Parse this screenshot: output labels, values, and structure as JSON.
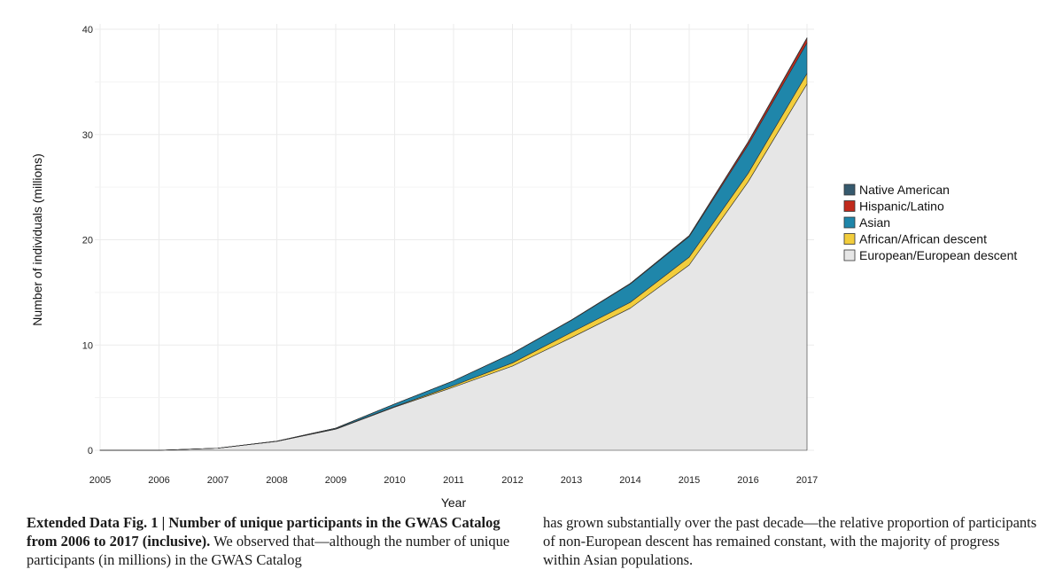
{
  "chart_data": {
    "type": "area",
    "stacked": true,
    "xlabel": "Year",
    "ylabel": "Number of individuals (millions)",
    "x": [
      2005,
      2006,
      2007,
      2008,
      2009,
      2010,
      2011,
      2012,
      2013,
      2014,
      2015,
      2016,
      2017
    ],
    "xticks": [
      "2005",
      "2006",
      "2007",
      "2008",
      "2009",
      "2010",
      "2011",
      "2012",
      "2013",
      "2014",
      "2015",
      "2016",
      "2017"
    ],
    "ylim": [
      0,
      40
    ],
    "yticks": [
      "0",
      "10",
      "20",
      "30",
      "40"
    ],
    "ytick_values": [
      0,
      10,
      20,
      30,
      40
    ],
    "grid": true,
    "legend_position": "right",
    "series": [
      {
        "name": "European/European descent",
        "color": "#e6e6e6",
        "values": [
          0,
          0,
          0.2,
          0.85,
          2.0,
          4.1,
          6.0,
          8.0,
          10.7,
          13.5,
          17.6,
          25.5,
          34.8
        ]
      },
      {
        "name": "African/African descent",
        "color": "#f2cd3c",
        "values": [
          0,
          0,
          0,
          0,
          0.03,
          0.05,
          0.15,
          0.3,
          0.5,
          0.55,
          0.75,
          0.8,
          1.0
        ]
      },
      {
        "name": "Asian",
        "color": "#1f86aa",
        "values": [
          0,
          0,
          0,
          0.02,
          0.07,
          0.25,
          0.45,
          0.9,
          1.15,
          1.75,
          1.95,
          2.7,
          2.9
        ]
      },
      {
        "name": "Hispanic/Latino",
        "color": "#c12a1c",
        "values": [
          0,
          0,
          0,
          0,
          0,
          0,
          0,
          0.02,
          0.03,
          0.05,
          0.08,
          0.25,
          0.45
        ]
      },
      {
        "name": "Native American",
        "color": "#365a6e",
        "values": [
          0,
          0,
          0,
          0,
          0,
          0,
          0,
          0,
          0,
          0,
          0.02,
          0.05,
          0.05
        ]
      }
    ],
    "legend": [
      "Native American",
      "Hispanic/Latino",
      "Asian",
      "African/African descent",
      "European/European descent"
    ]
  },
  "caption": {
    "label": "Extended Data Fig. 1 | Number of unique participants in the GWAS Catalog from 2006 to 2017 (inclusive).",
    "text_col1": " We observed that—although the number of unique participants (in millions) in the GWAS Catalog",
    "text_col2": "has grown substantially over the past decade—the relative proportion of participants of non-European descent has remained constant, with the majority of progress within Asian populations."
  }
}
